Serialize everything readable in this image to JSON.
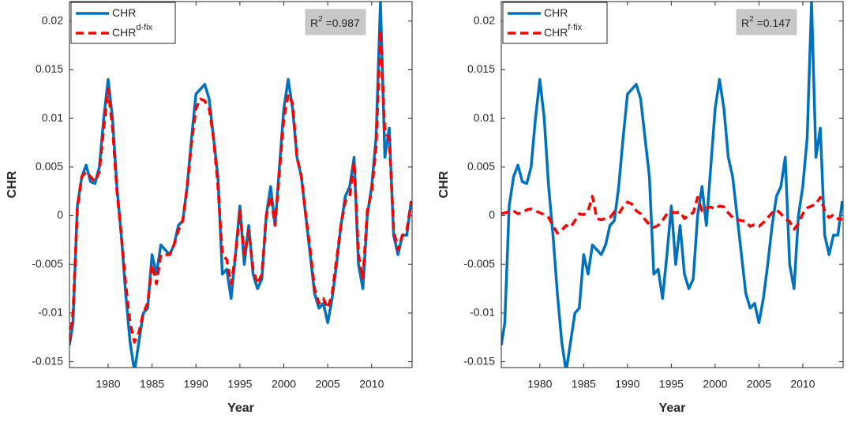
{
  "chart_data": [
    {
      "type": "line",
      "xlabel": "Year",
      "ylabel": "CHR",
      "xlim": [
        1975.6,
        2014.6
      ],
      "ylim": [
        -0.0156,
        0.022
      ],
      "xticks": [
        1980,
        1985,
        1990,
        1995,
        2000,
        2005,
        2010
      ],
      "yticks": [
        -0.015,
        -0.01,
        -0.005,
        0,
        0.005,
        0.01,
        0.015,
        0.02
      ],
      "legend": "upper left",
      "annotation": {
        "base": "R",
        "sup": "2",
        "text": " =0.987"
      },
      "x": [
        1975.6,
        1976,
        1976.5,
        1977,
        1977.5,
        1978,
        1978.5,
        1979,
        1979.5,
        1980,
        1980.5,
        1981,
        1981.5,
        1982,
        1982.5,
        1983,
        1983.5,
        1984,
        1984.5,
        1985,
        1985.5,
        1986,
        1986.5,
        1987,
        1987.5,
        1988,
        1988.5,
        1989,
        1989.5,
        1990,
        1990.5,
        1991,
        1991.5,
        1992,
        1992.5,
        1993,
        1993.5,
        1994,
        1994.5,
        1995,
        1995.5,
        1996,
        1996.5,
        1997,
        1997.5,
        1998,
        1998.5,
        1999,
        1999.5,
        2000,
        2000.5,
        2001,
        2001.5,
        2002,
        2002.5,
        2003,
        2003.5,
        2004,
        2004.5,
        2005,
        2005.5,
        2006,
        2006.5,
        2007,
        2007.5,
        2008,
        2008.5,
        2009,
        2009.5,
        2010,
        2010.5,
        2011,
        2011.5,
        2012,
        2012.5,
        2013,
        2013.5,
        2014,
        2014.5
      ],
      "series": [
        {
          "name": "CHR",
          "color": "#0072bd",
          "linestyle": "solid",
          "values": [
            -0.0133,
            -0.011,
            0.001,
            0.004,
            0.0052,
            0.0035,
            0.0033,
            0.005,
            0.01,
            0.014,
            0.01,
            0.003,
            -0.002,
            -0.008,
            -0.013,
            -0.016,
            -0.013,
            -0.01,
            -0.0095,
            -0.004,
            -0.006,
            -0.003,
            -0.0035,
            -0.004,
            -0.003,
            -0.001,
            -0.0005,
            0.003,
            0.008,
            0.0125,
            0.013,
            0.0135,
            0.012,
            0.008,
            0.004,
            -0.006,
            -0.0055,
            -0.0085,
            -0.004,
            0.001,
            -0.005,
            -0.001,
            -0.006,
            -0.0075,
            -0.0065,
            0.0,
            0.003,
            -0.001,
            0.005,
            0.011,
            0.014,
            0.011,
            0.006,
            0.004,
            0.0,
            -0.004,
            -0.008,
            -0.0095,
            -0.009,
            -0.011,
            -0.0085,
            -0.005,
            -0.001,
            0.002,
            0.003,
            0.006,
            -0.005,
            -0.0075,
            0.0,
            0.003,
            0.008,
            0.022,
            0.006,
            0.009,
            -0.002,
            -0.004,
            -0.002,
            -0.002,
            0.0015
          ]
        },
        {
          "name": "CHR",
          "name_sup": "d-fix",
          "color": "#ff0000",
          "linestyle": "dashed",
          "values": [
            -0.013,
            -0.01,
            0.0008,
            0.004,
            0.0045,
            0.004,
            0.0035,
            0.0045,
            0.009,
            0.013,
            0.009,
            0.0025,
            -0.002,
            -0.007,
            -0.011,
            -0.013,
            -0.012,
            -0.01,
            -0.009,
            -0.005,
            -0.007,
            -0.004,
            -0.004,
            -0.004,
            -0.003,
            -0.0015,
            -0.0005,
            0.003,
            0.0075,
            0.011,
            0.012,
            0.0118,
            0.011,
            0.008,
            0.003,
            -0.004,
            -0.0045,
            -0.007,
            -0.004,
            0.0005,
            -0.004,
            -0.0015,
            -0.0055,
            -0.007,
            -0.006,
            0.0,
            0.002,
            -0.001,
            0.0045,
            0.01,
            0.0125,
            0.0115,
            0.006,
            0.004,
            0.0,
            -0.0035,
            -0.0075,
            -0.009,
            -0.0085,
            -0.0095,
            -0.008,
            -0.0045,
            -0.001,
            0.0015,
            0.002,
            0.0055,
            -0.004,
            -0.0065,
            0.0005,
            0.0025,
            0.007,
            0.019,
            0.0085,
            0.008,
            -0.0015,
            -0.0035,
            -0.002,
            -0.0015,
            0.0015
          ]
        }
      ]
    },
    {
      "type": "line",
      "xlabel": "Year",
      "ylabel": "CHR",
      "xlim": [
        1975.6,
        2014.6
      ],
      "ylim": [
        -0.0156,
        0.022
      ],
      "xticks": [
        1980,
        1985,
        1990,
        1995,
        2000,
        2005,
        2010
      ],
      "yticks": [
        -0.015,
        -0.01,
        -0.005,
        0,
        0.005,
        0.01,
        0.015,
        0.02
      ],
      "legend": "upper left",
      "annotation": {
        "base": "R",
        "sup": "2",
        "text": " =0.147"
      },
      "x": [
        1975.6,
        1976,
        1976.5,
        1977,
        1977.5,
        1978,
        1978.5,
        1979,
        1979.5,
        1980,
        1980.5,
        1981,
        1981.5,
        1982,
        1982.5,
        1983,
        1983.5,
        1984,
        1984.5,
        1985,
        1985.5,
        1986,
        1986.5,
        1987,
        1987.5,
        1988,
        1988.5,
        1989,
        1989.5,
        1990,
        1990.5,
        1991,
        1991.5,
        1992,
        1992.5,
        1993,
        1993.5,
        1994,
        1994.5,
        1995,
        1995.5,
        1996,
        1996.5,
        1997,
        1997.5,
        1998,
        1998.5,
        1999,
        1999.5,
        2000,
        2000.5,
        2001,
        2001.5,
        2002,
        2002.5,
        2003,
        2003.5,
        2004,
        2004.5,
        2005,
        2005.5,
        2006,
        2006.5,
        2007,
        2007.5,
        2008,
        2008.5,
        2009,
        2009.5,
        2010,
        2010.5,
        2011,
        2011.5,
        2012,
        2012.5,
        2013,
        2013.5,
        2014,
        2014.5
      ],
      "series": [
        {
          "name": "CHR",
          "color": "#0072bd",
          "linestyle": "solid",
          "values": [
            -0.0133,
            -0.011,
            0.001,
            0.004,
            0.0052,
            0.0035,
            0.0033,
            0.005,
            0.01,
            0.014,
            0.01,
            0.003,
            -0.002,
            -0.008,
            -0.013,
            -0.016,
            -0.013,
            -0.01,
            -0.0095,
            -0.004,
            -0.006,
            -0.003,
            -0.0035,
            -0.004,
            -0.003,
            -0.001,
            -0.0005,
            0.003,
            0.008,
            0.0125,
            0.013,
            0.0135,
            0.012,
            0.008,
            0.004,
            -0.006,
            -0.0055,
            -0.0085,
            -0.004,
            0.001,
            -0.005,
            -0.001,
            -0.006,
            -0.0075,
            -0.0065,
            0.0,
            0.003,
            -0.001,
            0.005,
            0.011,
            0.014,
            0.011,
            0.006,
            0.004,
            0.0,
            -0.004,
            -0.008,
            -0.0095,
            -0.009,
            -0.011,
            -0.0085,
            -0.005,
            -0.001,
            0.002,
            0.003,
            0.006,
            -0.005,
            -0.0075,
            0.0,
            0.003,
            0.008,
            0.022,
            0.006,
            0.009,
            -0.002,
            -0.004,
            -0.002,
            -0.002,
            0.0015
          ]
        },
        {
          "name": "CHR",
          "name_sup": "f-fix",
          "color": "#ff0000",
          "linestyle": "dashed",
          "values": [
            0.0002,
            0.0003,
            0.0004,
            0.0005,
            0.0002,
            0.0003,
            0.0006,
            0.0007,
            0.0005,
            0.0003,
            0.0001,
            -0.0002,
            -0.001,
            -0.0018,
            -0.0015,
            -0.001,
            -0.0012,
            -0.0005,
            0.0002,
            0.0001,
            0.0005,
            0.002,
            -0.0003,
            -0.0004,
            -0.0003,
            -0.0002,
            0.0004,
            0.0002,
            0.0009,
            0.0014,
            0.0012,
            0.0005,
            0.0002,
            -0.0004,
            -0.0009,
            -0.0012,
            -0.001,
            -0.0005,
            0.0002,
            0.0004,
            0.0003,
            0.0004,
            -0.0003,
            0.0001,
            0.0003,
            0.0019,
            0.0005,
            0.0008,
            0.0009,
            0.0007,
            0.001,
            0.0009,
            0.0003,
            -0.0002,
            -0.0004,
            -0.0005,
            -0.0006,
            -0.0011,
            -0.0009,
            -0.0011,
            -0.0007,
            -0.0002,
            0.0003,
            0.0006,
            0.0002,
            -0.0003,
            -0.0006,
            -0.0014,
            -0.0008,
            0.0002,
            0.0008,
            0.001,
            0.0012,
            0.0019,
            0.0005,
            -0.0002,
            0.0001,
            -0.0003,
            -0.0004
          ]
        }
      ]
    }
  ]
}
